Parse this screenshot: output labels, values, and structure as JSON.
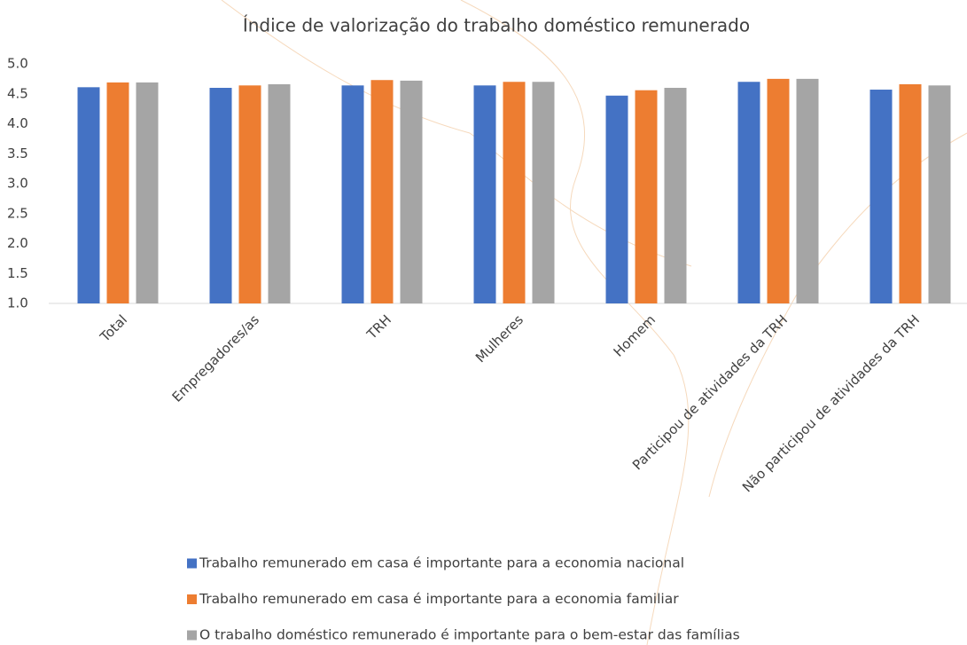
{
  "chart_data": {
    "type": "bar",
    "title": "Índice de valorização do trabalho doméstico remunerado",
    "categories": [
      "Total",
      "Empregadores/as",
      "TRH",
      "Mulheres",
      "Homem",
      "Participou de atividades da TRH",
      "Não participou de atividades da TRH"
    ],
    "series": [
      {
        "name": "Trabalho remunerado em casa é importante para a economia nacional",
        "color": "#4472c4",
        "values": [
          4.61,
          4.6,
          4.64,
          4.64,
          4.47,
          4.7,
          4.57
        ]
      },
      {
        "name": "Trabalho remunerado em casa é importante para a economia familiar",
        "color": "#ed7d31",
        "values": [
          4.69,
          4.64,
          4.73,
          4.7,
          4.56,
          4.75,
          4.66
        ]
      },
      {
        "name": "O trabalho doméstico remunerado é importante para o bem-estar das famílias",
        "color": "#a5a5a5",
        "values": [
          4.69,
          4.66,
          4.72,
          4.7,
          4.6,
          4.75,
          4.64
        ]
      }
    ],
    "ylim": [
      1,
      5
    ],
    "yticks": [
      {
        "value": 1,
        "label": "1.0"
      },
      {
        "value": 1.5,
        "label": "1.5"
      },
      {
        "value": 2,
        "label": "2.0"
      },
      {
        "value": 2.5,
        "label": "2.5"
      },
      {
        "value": 3,
        "label": "3.0"
      },
      {
        "value": 3.5,
        "label": "3.5"
      },
      {
        "value": 4,
        "label": "4.0"
      },
      {
        "value": 4.5,
        "label": "4.5"
      },
      {
        "value": 5,
        "label": "5.0"
      }
    ],
    "grid": false,
    "legend": "bottom"
  }
}
